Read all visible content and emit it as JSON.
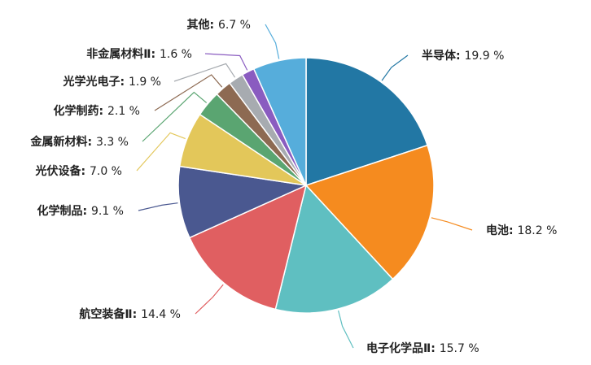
{
  "chart_data": {
    "type": "pie",
    "title": "",
    "slices": [
      {
        "name": "半导体",
        "value": 19.9,
        "value_label": "19.9 %",
        "color": "#2277a4"
      },
      {
        "name": "电池",
        "value": 18.2,
        "value_label": "18.2 %",
        "color": "#f58b1f"
      },
      {
        "name": "电子化学品Ⅱ",
        "value": 15.7,
        "value_label": "15.7 %",
        "color": "#5fbfc1"
      },
      {
        "name": "航空装备Ⅱ",
        "value": 14.4,
        "value_label": "14.4 %",
        "color": "#e05f61"
      },
      {
        "name": "化学制品",
        "value": 9.1,
        "value_label": "9.1 %",
        "color": "#4a5890"
      },
      {
        "name": "光伏设备",
        "value": 7.0,
        "value_label": "7.0 %",
        "color": "#e3c75a"
      },
      {
        "name": "金属新材料",
        "value": 3.3,
        "value_label": "3.3 %",
        "color": "#5aa571"
      },
      {
        "name": "化学制药",
        "value": 2.1,
        "value_label": "2.1 %",
        "color": "#8d6a52"
      },
      {
        "name": "光学光电子",
        "value": 1.9,
        "value_label": "1.9 %",
        "color": "#a7abb0"
      },
      {
        "name": "非金属材料Ⅱ",
        "value": 1.6,
        "value_label": "1.6 %",
        "color": "#8a5cc0"
      },
      {
        "name": "其他",
        "value": 6.7,
        "value_label": "6.7 %",
        "color": "#56addb"
      }
    ],
    "start_angle_deg": 0,
    "direction": "clockwise",
    "legend": "none",
    "labels": "outside with leader lines"
  }
}
